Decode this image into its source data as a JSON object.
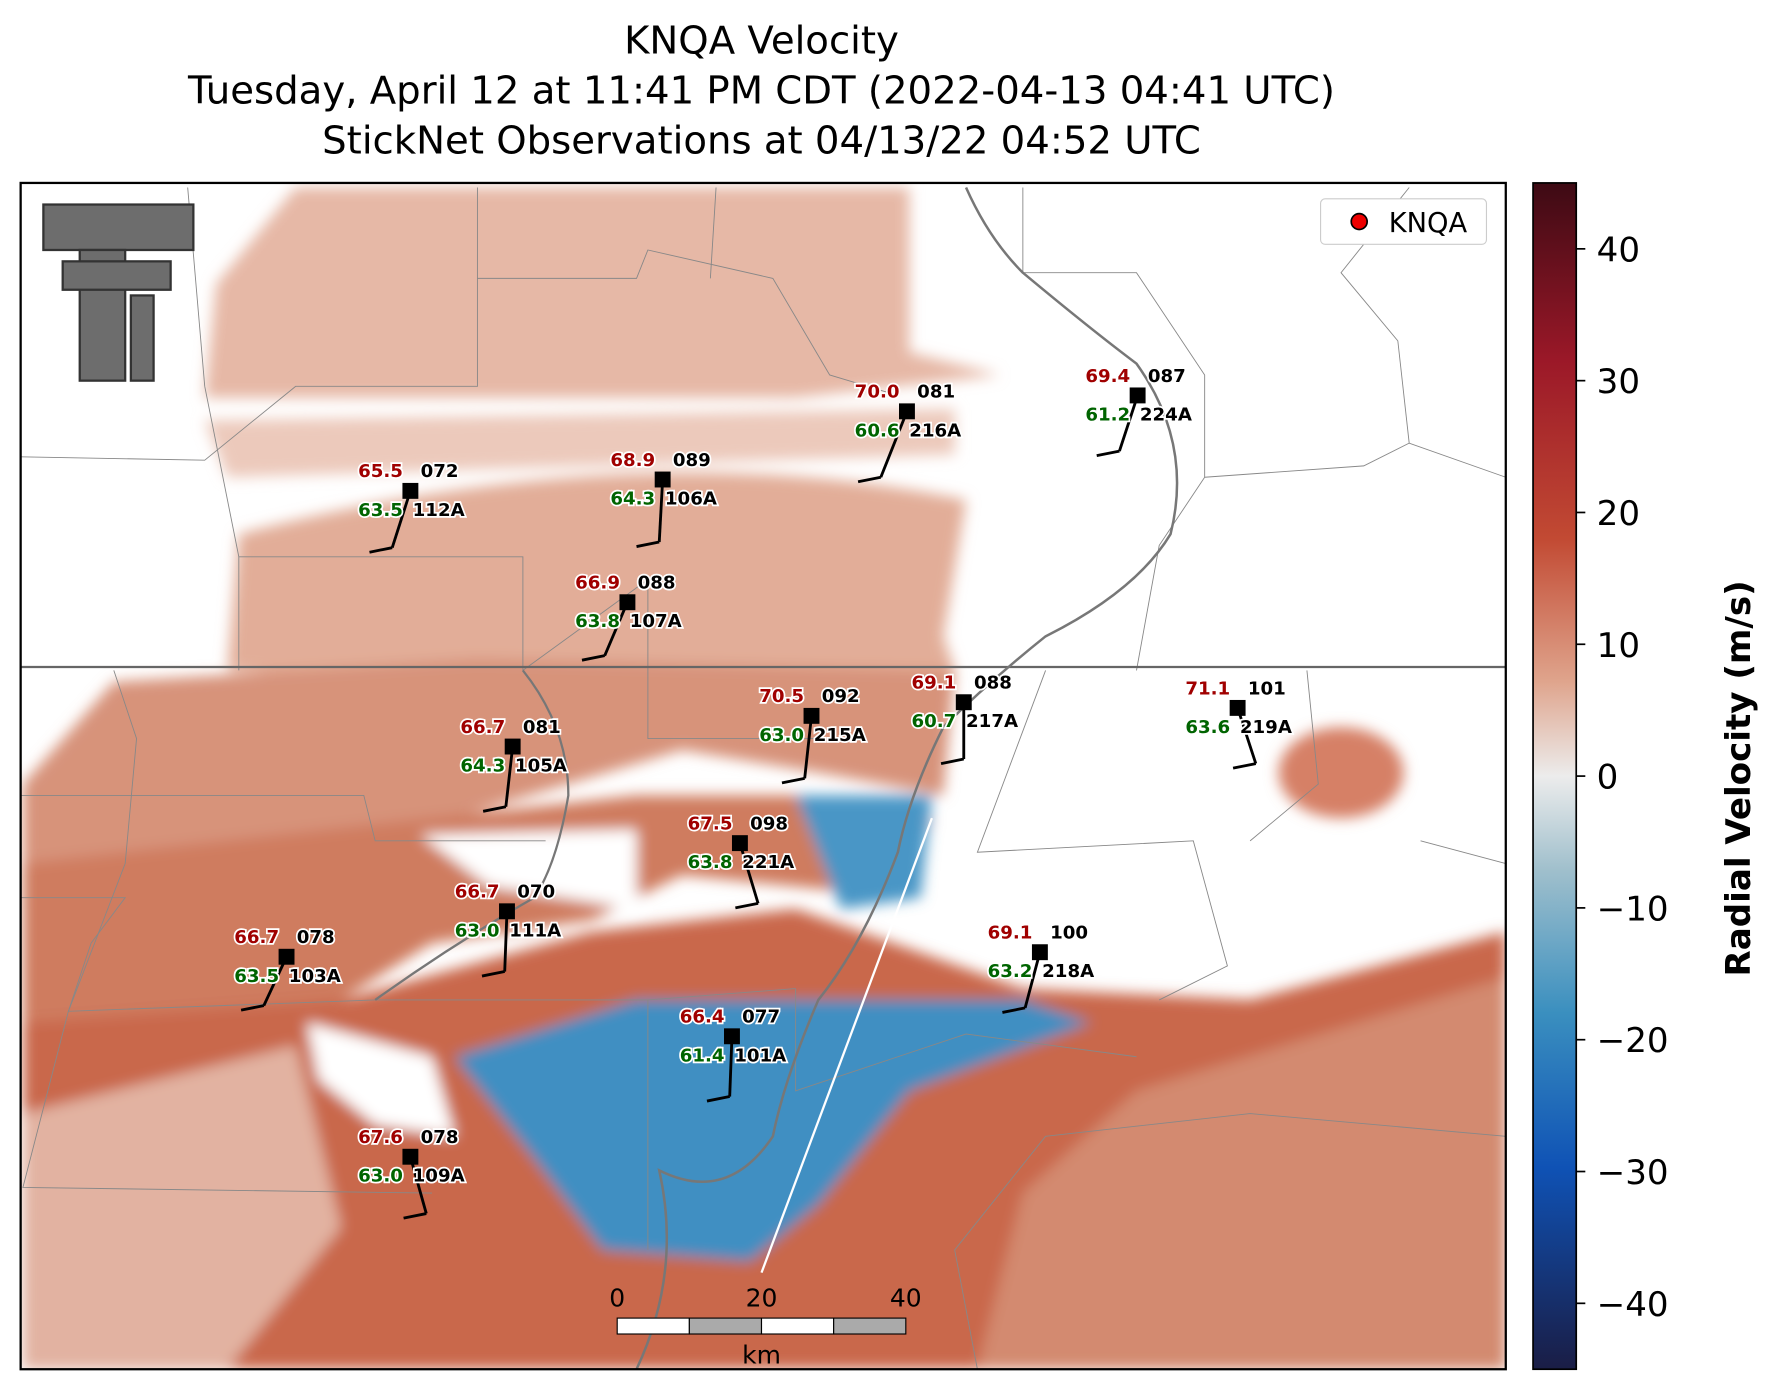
{
  "title": [
    "KNQA Velocity",
    "Tuesday, April 12 at 11:41 PM CDT (2022-04-13 04:41 UTC)",
    "StickNet Observations at 04/13/22 04:52 UTC"
  ],
  "legend": {
    "label": "KNQA"
  },
  "colorbar": {
    "label": "Radial Velocity (m/s)",
    "lim": [
      -45,
      45
    ],
    "ticks": [
      {
        "value": -40,
        "label": "−40"
      },
      {
        "value": -30,
        "label": "−30"
      },
      {
        "value": -20,
        "label": "−20"
      },
      {
        "value": -10,
        "label": "−10"
      },
      0,
      10,
      20,
      30,
      40
    ]
  },
  "scale_bar": {
    "ticks": [
      0,
      20,
      40
    ],
    "unit": "km"
  },
  "stations": [
    {
      "id": "216A",
      "temperature": "70.0",
      "dewpoint": "60.6",
      "pressure": "081"
    },
    {
      "id": "224A",
      "temperature": "69.4",
      "dewpoint": "61.2",
      "pressure": "087"
    },
    {
      "id": "112A",
      "temperature": "65.5",
      "dewpoint": "63.5",
      "pressure": "072"
    },
    {
      "id": "106A",
      "temperature": "68.9",
      "dewpoint": "64.3",
      "pressure": "089"
    },
    {
      "id": "107A",
      "temperature": "66.9",
      "dewpoint": "63.8",
      "pressure": "088"
    },
    {
      "id": "215A",
      "temperature": "70.5",
      "dewpoint": "63.0",
      "pressure": "092"
    },
    {
      "id": "217A",
      "temperature": "69.1",
      "dewpoint": "60.7",
      "pressure": "088"
    },
    {
      "id": "219A",
      "temperature": "71.1",
      "dewpoint": "63.6",
      "pressure": "101"
    },
    {
      "id": "105A",
      "temperature": "66.7",
      "dewpoint": "64.3",
      "pressure": "081"
    },
    {
      "id": "221A",
      "temperature": "67.5",
      "dewpoint": "63.8",
      "pressure": "098"
    },
    {
      "id": "111A",
      "temperature": "66.7",
      "dewpoint": "63.0",
      "pressure": "070"
    },
    {
      "id": "103A",
      "temperature": "66.7",
      "dewpoint": "63.5",
      "pressure": "078"
    },
    {
      "id": "218A",
      "temperature": "69.1",
      "dewpoint": "63.2",
      "pressure": "100"
    },
    {
      "id": "101A",
      "temperature": "66.4",
      "dewpoint": "61.4",
      "pressure": "077"
    },
    {
      "id": "109A",
      "temperature": "67.6",
      "dewpoint": "63.0",
      "pressure": "078"
    }
  ]
}
